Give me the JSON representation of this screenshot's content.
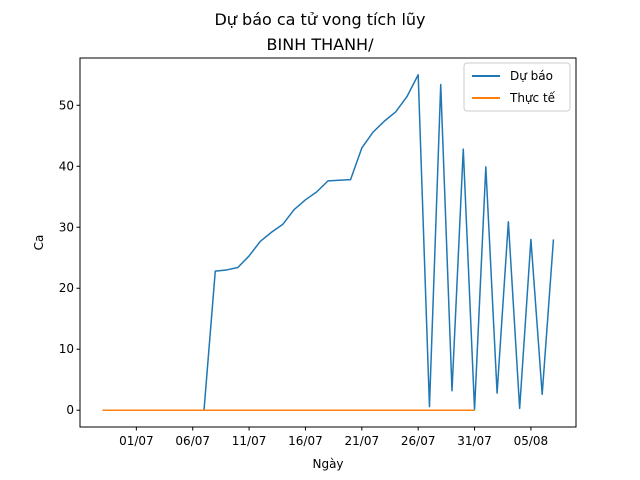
{
  "chart_data": {
    "type": "line",
    "title": "Dự báo ca tử vong tích lũy",
    "subtitle": "BINH THANH/",
    "xlabel": "Ngày",
    "ylabel": "Ca",
    "x_start": "2021-06-28",
    "xlim": [
      "2021-06-26",
      "2021-08-09"
    ],
    "ylim": [
      -2.75,
      57.75
    ],
    "y_ticks": [
      0,
      10,
      20,
      30,
      40,
      50
    ],
    "x_ticks": [
      {
        "date": "2021-07-01",
        "label": "01/07"
      },
      {
        "date": "2021-07-06",
        "label": "06/07"
      },
      {
        "date": "2021-07-11",
        "label": "11/07"
      },
      {
        "date": "2021-07-16",
        "label": "16/07"
      },
      {
        "date": "2021-07-21",
        "label": "21/07"
      },
      {
        "date": "2021-07-26",
        "label": "26/07"
      },
      {
        "date": "2021-07-31",
        "label": "31/07"
      },
      {
        "date": "2021-08-05",
        "label": "05/08"
      }
    ],
    "grid": false,
    "legend_position": "top-right",
    "series": [
      {
        "name": "Dự báo",
        "color": "#1f77b4",
        "x": [
          "2021-06-28",
          "2021-06-29",
          "2021-06-30",
          "2021-07-01",
          "2021-07-02",
          "2021-07-03",
          "2021-07-04",
          "2021-07-05",
          "2021-07-06",
          "2021-07-07",
          "2021-07-08",
          "2021-07-09",
          "2021-07-10",
          "2021-07-11",
          "2021-07-12",
          "2021-07-13",
          "2021-07-14",
          "2021-07-15",
          "2021-07-16",
          "2021-07-17",
          "2021-07-18",
          "2021-07-19",
          "2021-07-20",
          "2021-07-21",
          "2021-07-22",
          "2021-07-23",
          "2021-07-24",
          "2021-07-25",
          "2021-07-26",
          "2021-07-27",
          "2021-07-28",
          "2021-07-29",
          "2021-07-30",
          "2021-07-31",
          "2021-08-01",
          "2021-08-02",
          "2021-08-03",
          "2021-08-04",
          "2021-08-05",
          "2021-08-06",
          "2021-08-07"
        ],
        "values": [
          0,
          0,
          0,
          0,
          0,
          0,
          0,
          0,
          0,
          0,
          22.8,
          23.0,
          23.4,
          25.3,
          27.7,
          29.2,
          30.5,
          32.9,
          34.5,
          35.8,
          37.6,
          37.7,
          37.8,
          43.0,
          45.6,
          47.4,
          48.9,
          51.4,
          55.0,
          0.6,
          53.4,
          3.2,
          42.8,
          0.1,
          39.9,
          2.8,
          30.9,
          0.3,
          28.0,
          2.6,
          28.0
        ]
      },
      {
        "name": "Thực tế",
        "color": "#ff7f0e",
        "x": [
          "2021-06-28",
          "2021-07-31"
        ],
        "values": [
          0,
          0
        ]
      }
    ]
  }
}
